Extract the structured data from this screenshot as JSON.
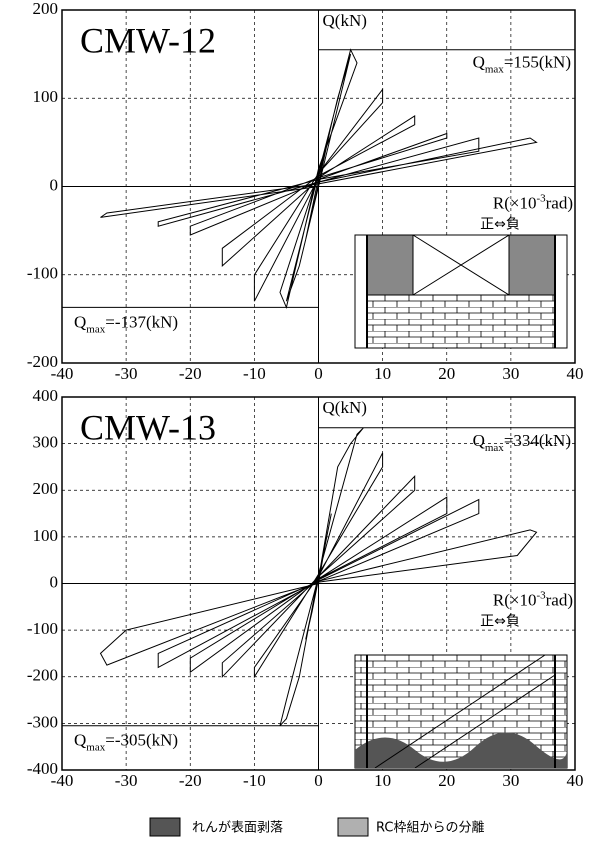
{
  "chart_data": [
    {
      "type": "line",
      "title": "CMW-12",
      "x": [
        0,
        1,
        2,
        -1,
        -2,
        0,
        3,
        5,
        -3,
        -5,
        0,
        5,
        6,
        0,
        -5,
        -6,
        0,
        10,
        10,
        0,
        -10,
        -10,
        0,
        15,
        15,
        0,
        -15,
        -15,
        0,
        20,
        20,
        0,
        -20,
        -20,
        0,
        25,
        25,
        0,
        -25,
        -25,
        0,
        33,
        34,
        0,
        -33,
        -34,
        0
      ],
      "values": [
        0,
        40,
        70,
        -30,
        -60,
        10,
        100,
        150,
        -90,
        -130,
        15,
        155,
        140,
        20,
        -137,
        -120,
        15,
        110,
        95,
        15,
        -100,
        -130,
        10,
        80,
        70,
        12,
        -70,
        -90,
        8,
        60,
        55,
        10,
        -45,
        -55,
        5,
        55,
        40,
        8,
        -40,
        -45,
        5,
        55,
        50,
        3,
        -30,
        -35,
        0
      ],
      "color": "#000000",
      "xlim": [
        -40,
        40
      ],
      "xticks": [
        -40,
        -30,
        -20,
        -10,
        0,
        10,
        20,
        30,
        40
      ],
      "ylim": [
        -200,
        200
      ],
      "yticks": [
        -200,
        -100,
        0,
        100,
        200
      ],
      "grid": true,
      "y_label": "Q(kN)",
      "x_label": {
        "base": "R(×10",
        "sup": "-3",
        "text": "rad)"
      },
      "direction": "正⇔負",
      "annotations": [
        {
          "value": 155,
          "base": "Q",
          "sub": "max",
          "text": "=155(kN)"
        },
        {
          "value": -137,
          "base": "Q",
          "sub": "max",
          "text": "=-137(kN)"
        }
      ]
    },
    {
      "type": "line",
      "title": "CMW-13",
      "x": [
        0,
        1,
        2,
        -1,
        -2,
        0,
        3,
        5,
        7,
        6,
        0,
        -3,
        -5,
        -6,
        -5,
        0,
        10,
        10,
        0,
        -10,
        -10,
        0,
        15,
        15,
        0,
        -15,
        -15,
        0,
        20,
        20,
        0,
        -20,
        -20,
        0,
        25,
        25,
        0,
        -25,
        -25,
        0,
        33,
        34,
        31,
        0,
        -33,
        -34,
        -30,
        0
      ],
      "values": [
        0,
        80,
        150,
        -60,
        -120,
        10,
        250,
        300,
        334,
        320,
        20,
        -200,
        -290,
        -305,
        -250,
        15,
        280,
        250,
        20,
        -200,
        -180,
        15,
        230,
        200,
        15,
        -200,
        -170,
        10,
        185,
        150,
        10,
        -190,
        -160,
        8,
        180,
        150,
        5,
        -180,
        -150,
        5,
        115,
        110,
        60,
        3,
        -175,
        -150,
        -100,
        0
      ],
      "color": "#000000",
      "xlim": [
        -40,
        40
      ],
      "xticks": [
        -40,
        -30,
        -20,
        -10,
        0,
        10,
        20,
        30,
        40
      ],
      "ylim": [
        -400,
        400
      ],
      "yticks": [
        -400,
        -300,
        -200,
        -100,
        0,
        100,
        200,
        300,
        400
      ],
      "grid": true,
      "y_label": "Q(kN)",
      "x_label": {
        "base": "R(×10",
        "sup": "-3",
        "text": "rad)"
      },
      "direction": "正⇔負",
      "annotations": [
        {
          "value": 334,
          "base": "Q",
          "sub": "max",
          "text": "=334(kN)"
        },
        {
          "value": -305,
          "base": "Q",
          "sub": "max",
          "text": "=-305(kN)"
        }
      ]
    }
  ],
  "legend": [
    {
      "label": "れんが表面剥落",
      "color": "#555555"
    },
    {
      "label": "RC枠組からの分離",
      "color": "#b0b0b0"
    }
  ]
}
